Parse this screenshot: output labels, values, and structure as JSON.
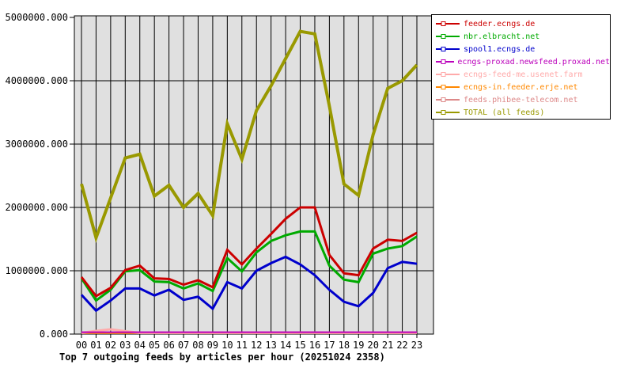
{
  "chart_data": {
    "type": "line",
    "title": "Top 7 outgoing feeds by articles per hour (20251024 2358)",
    "xlabel": "",
    "ylabel": "",
    "ylim": [
      0,
      5000000
    ],
    "grid": true,
    "legend_position": "top-right",
    "plot_bg_color": "#e0e0e0",
    "grid_color": "#000000",
    "x_categories": [
      "00",
      "01",
      "02",
      "03",
      "04",
      "05",
      "06",
      "07",
      "08",
      "09",
      "10",
      "11",
      "12",
      "13",
      "14",
      "15",
      "16",
      "17",
      "18",
      "19",
      "20",
      "21",
      "22",
      "23"
    ],
    "y_ticks": [
      {
        "label": "5000000.000",
        "value": 5000000
      },
      {
        "label": "4000000.000",
        "value": 4000000
      },
      {
        "label": "3000000.000",
        "value": 3000000
      },
      {
        "label": "2000000.000",
        "value": 2000000
      },
      {
        "label": "1000000.000",
        "value": 1000000
      },
      {
        "label": "0.000",
        "value": 0
      }
    ],
    "series": [
      {
        "name": "feeder.ecngs.de",
        "color": "#cc0000",
        "width": 3,
        "values": [
          900000,
          600000,
          730000,
          1010000,
          1080000,
          880000,
          870000,
          780000,
          850000,
          740000,
          1330000,
          1100000,
          1350000,
          1580000,
          1820000,
          2000000,
          2000000,
          1250000,
          960000,
          930000,
          1350000,
          1490000,
          1470000,
          1600000
        ]
      },
      {
        "name": "nbr.elbracht.net",
        "color": "#00aa00",
        "width": 3,
        "values": [
          880000,
          530000,
          700000,
          990000,
          1010000,
          830000,
          820000,
          720000,
          800000,
          680000,
          1200000,
          990000,
          1290000,
          1470000,
          1560000,
          1620000,
          1620000,
          1080000,
          860000,
          820000,
          1270000,
          1350000,
          1390000,
          1540000
        ]
      },
      {
        "name": "spool1.ecngs.de",
        "color": "#0000cc",
        "width": 3,
        "values": [
          620000,
          370000,
          530000,
          720000,
          720000,
          610000,
          700000,
          540000,
          590000,
          400000,
          820000,
          720000,
          1000000,
          1120000,
          1220000,
          1100000,
          930000,
          700000,
          510000,
          440000,
          650000,
          1040000,
          1140000,
          1110000
        ]
      },
      {
        "name": "ecngs-proxad.newsfeed.proxad.net",
        "color": "#bb00bb",
        "width": 2,
        "values": [
          30000,
          30000,
          30000,
          30000,
          30000,
          30000,
          30000,
          30000,
          30000,
          30000,
          30000,
          30000,
          30000,
          30000,
          30000,
          30000,
          30000,
          30000,
          30000,
          30000,
          30000,
          30000,
          30000,
          30000
        ]
      },
      {
        "name": "ecngs-feed-me.usenet.farm",
        "color": "#ffaaaa",
        "width": 3,
        "values": [
          20000,
          50000,
          75000,
          45000,
          20000,
          20000,
          20000,
          20000,
          20000,
          20000,
          20000,
          20000,
          20000,
          20000,
          20000,
          20000,
          20000,
          20000,
          20000,
          20000,
          20000,
          20000,
          20000,
          20000
        ]
      },
      {
        "name": "ecngs-in.feeder.erje.net",
        "color": "#ff8800",
        "width": 2,
        "values": [
          15000,
          15000,
          15000,
          15000,
          15000,
          15000,
          15000,
          15000,
          15000,
          15000,
          15000,
          15000,
          15000,
          15000,
          15000,
          15000,
          15000,
          15000,
          15000,
          15000,
          15000,
          15000,
          15000,
          15000
        ]
      },
      {
        "name": "feeds.phibee-telecom.net",
        "color": "#dd8888",
        "width": 3,
        "values": [
          20000,
          20000,
          20000,
          20000,
          20000,
          20000,
          20000,
          20000,
          20000,
          20000,
          20000,
          20000,
          20000,
          20000,
          20000,
          25000,
          25000,
          20000,
          20000,
          20000,
          20000,
          20000,
          20000,
          25000
        ]
      },
      {
        "name": "TOTAL (all feeds)",
        "color": "#999900",
        "width": 4,
        "values": [
          2370000,
          1520000,
          2150000,
          2780000,
          2840000,
          2180000,
          2350000,
          2000000,
          2220000,
          1870000,
          3320000,
          2760000,
          3530000,
          3920000,
          4350000,
          4780000,
          4740000,
          3600000,
          2370000,
          2190000,
          3150000,
          3880000,
          4000000,
          4250000
        ]
      }
    ]
  }
}
